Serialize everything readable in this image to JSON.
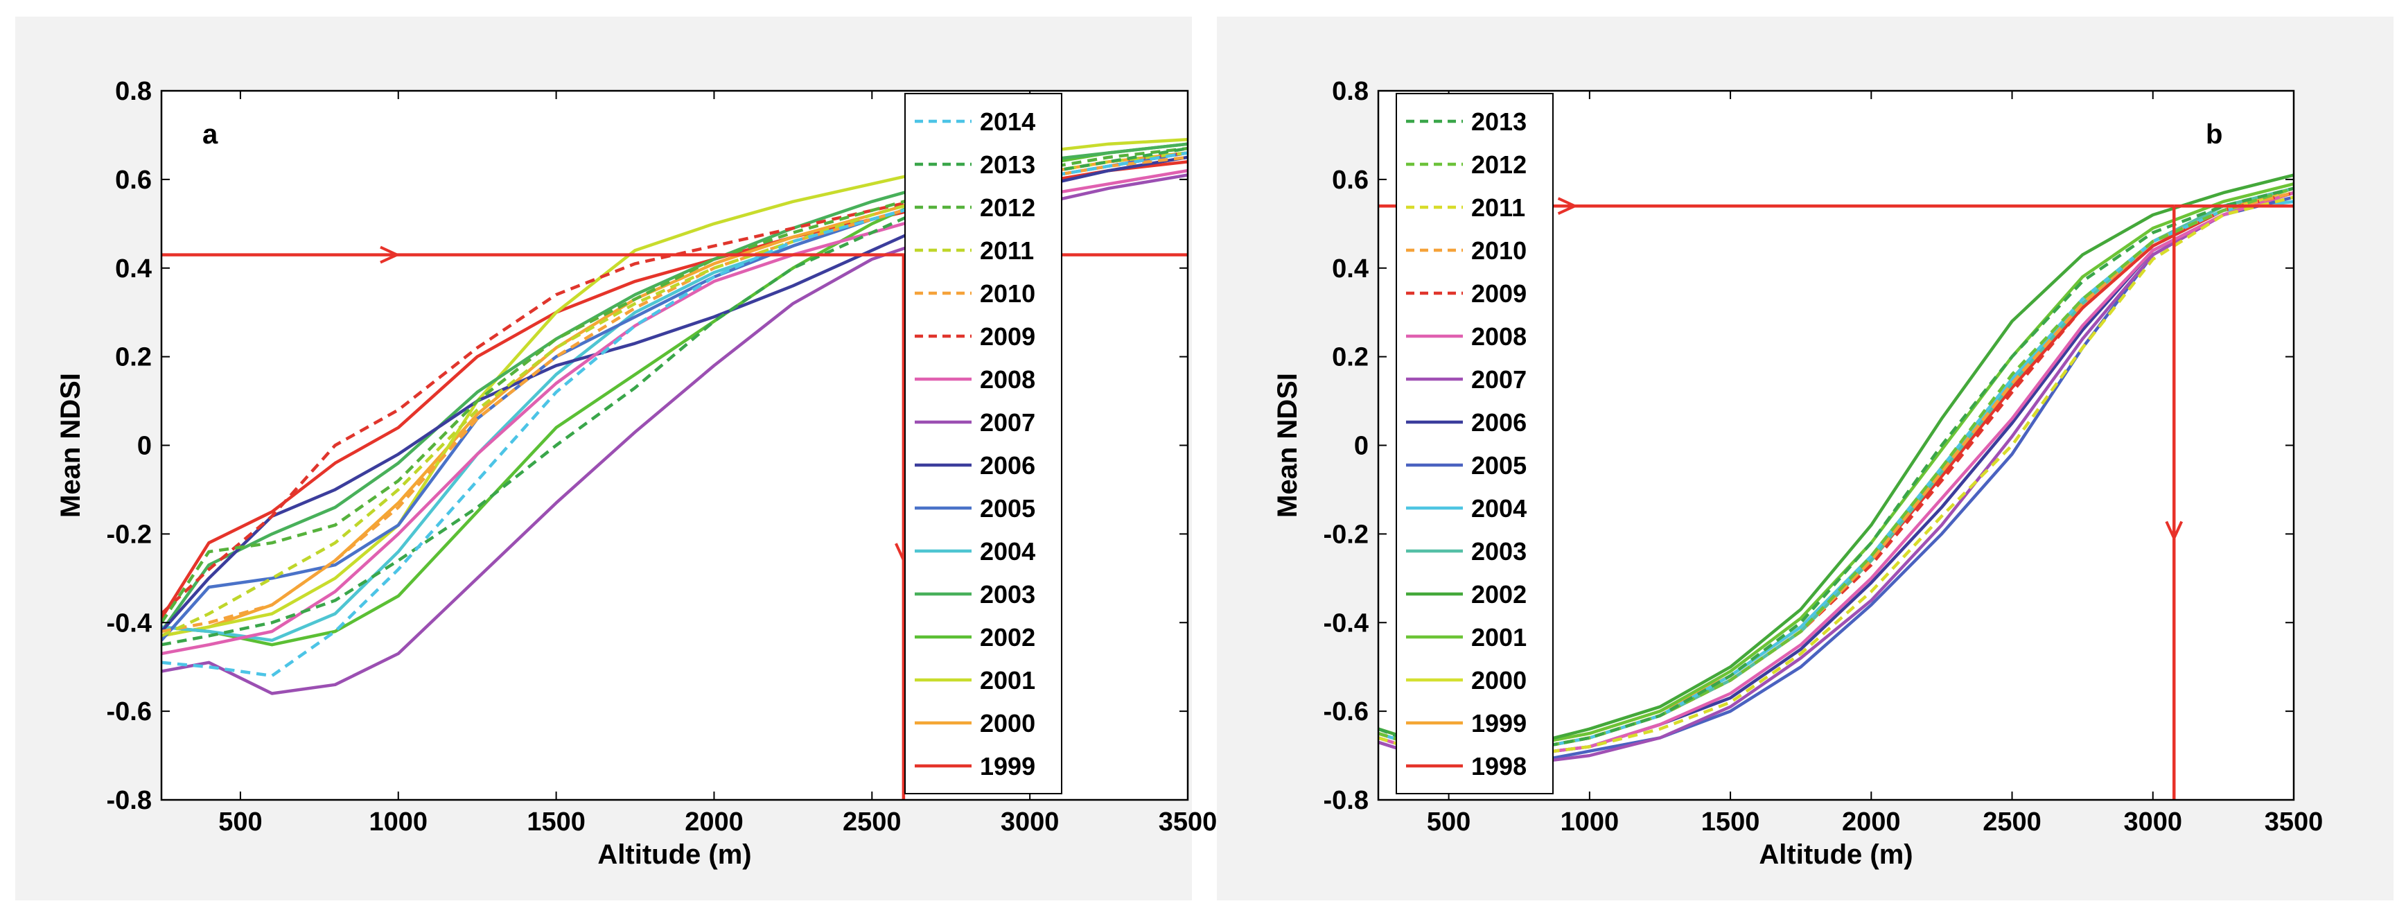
{
  "chart_data": [
    {
      "type": "line",
      "panel_label": "a",
      "xlabel": "Altitude (m)",
      "ylabel": "Mean NDSI",
      "xlim": [
        250,
        3500
      ],
      "ylim": [
        -0.8,
        0.8
      ],
      "xticks": [
        500,
        1000,
        1500,
        2000,
        2500,
        3000,
        3500
      ],
      "yticks": [
        -0.8,
        -0.6,
        -0.4,
        -0.2,
        0,
        0.2,
        0.4,
        0.6,
        0.8
      ],
      "ytick_labels": [
        "-0.8",
        "-0.6",
        "-0.4",
        "-0.2",
        "0",
        "0.2",
        "0.4",
        "0.6",
        "0.8"
      ],
      "legend_position": "top-right",
      "x": [
        250,
        400,
        600,
        800,
        1000,
        1250,
        1500,
        1750,
        2000,
        2250,
        2500,
        2750,
        3000,
        3250,
        3500
      ],
      "series": [
        {
          "name": "2014",
          "color": "#4cc4e6",
          "dash": true,
          "values": [
            -0.49,
            -0.5,
            -0.52,
            -0.42,
            -0.28,
            -0.08,
            0.12,
            0.27,
            0.38,
            0.46,
            0.51,
            0.56,
            0.6,
            0.63,
            0.66
          ]
        },
        {
          "name": "2013",
          "color": "#3aa64a",
          "dash": true,
          "values": [
            -0.45,
            -0.43,
            -0.4,
            -0.35,
            -0.26,
            -0.14,
            0.0,
            0.13,
            0.28,
            0.4,
            0.48,
            0.56,
            0.61,
            0.64,
            0.67
          ]
        },
        {
          "name": "2012",
          "color": "#56b23c",
          "dash": true,
          "values": [
            -0.4,
            -0.24,
            -0.22,
            -0.18,
            -0.08,
            0.1,
            0.24,
            0.33,
            0.42,
            0.48,
            0.53,
            0.58,
            0.62,
            0.65,
            0.67
          ]
        },
        {
          "name": "2011",
          "color": "#bfd62a",
          "dash": true,
          "values": [
            -0.43,
            -0.38,
            -0.3,
            -0.22,
            -0.1,
            0.08,
            0.22,
            0.32,
            0.4,
            0.46,
            0.52,
            0.57,
            0.61,
            0.64,
            0.66
          ]
        },
        {
          "name": "2010",
          "color": "#f5a23a",
          "dash": true,
          "values": [
            -0.42,
            -0.4,
            -0.36,
            -0.26,
            -0.14,
            0.06,
            0.2,
            0.31,
            0.4,
            0.46,
            0.51,
            0.56,
            0.6,
            0.63,
            0.65
          ]
        },
        {
          "name": "2009",
          "color": "#e0352c",
          "dash": true,
          "values": [
            -0.38,
            -0.28,
            -0.16,
            0.0,
            0.08,
            0.22,
            0.34,
            0.41,
            0.45,
            0.49,
            0.53,
            0.57,
            0.61,
            0.64,
            0.66
          ]
        },
        {
          "name": "2008",
          "color": "#e060b0",
          "solid_color": true,
          "dash": false,
          "values": [
            -0.47,
            -0.45,
            -0.42,
            -0.33,
            -0.2,
            -0.02,
            0.14,
            0.27,
            0.37,
            0.43,
            0.48,
            0.53,
            0.56,
            0.59,
            0.62
          ]
        },
        {
          "name": "2007",
          "color": "#9b4fb2",
          "dash": false,
          "values": [
            -0.51,
            -0.49,
            -0.56,
            -0.54,
            -0.47,
            -0.3,
            -0.13,
            0.03,
            0.18,
            0.32,
            0.42,
            0.48,
            0.54,
            0.58,
            0.61
          ]
        },
        {
          "name": "2006",
          "color": "#3b3d9c",
          "dash": false,
          "values": [
            -0.42,
            -0.3,
            -0.16,
            -0.1,
            -0.02,
            0.1,
            0.18,
            0.23,
            0.29,
            0.36,
            0.44,
            0.52,
            0.58,
            0.62,
            0.65
          ]
        },
        {
          "name": "2005",
          "color": "#4a72c8",
          "dash": false,
          "values": [
            -0.44,
            -0.32,
            -0.3,
            -0.27,
            -0.18,
            0.06,
            0.2,
            0.29,
            0.38,
            0.45,
            0.51,
            0.56,
            0.6,
            0.63,
            0.66
          ]
        },
        {
          "name": "2004",
          "color": "#4ec5d2",
          "dash": false,
          "values": [
            -0.41,
            -0.42,
            -0.44,
            -0.38,
            -0.24,
            -0.02,
            0.16,
            0.3,
            0.39,
            0.45,
            0.51,
            0.56,
            0.6,
            0.63,
            0.66
          ]
        },
        {
          "name": "2003",
          "color": "#48b05a",
          "dash": false,
          "values": [
            -0.42,
            -0.27,
            -0.2,
            -0.14,
            -0.04,
            0.12,
            0.24,
            0.34,
            0.42,
            0.49,
            0.55,
            0.6,
            0.64,
            0.66,
            0.68
          ]
        },
        {
          "name": "2002",
          "color": "#5bbf34",
          "dash": false,
          "values": [
            -0.41,
            -0.42,
            -0.45,
            -0.42,
            -0.34,
            -0.15,
            0.04,
            0.16,
            0.28,
            0.4,
            0.5,
            0.58,
            0.63,
            0.66,
            0.68
          ]
        },
        {
          "name": "2001",
          "color": "#c8dc2c",
          "dash": false,
          "values": [
            -0.43,
            -0.41,
            -0.38,
            -0.3,
            -0.18,
            0.1,
            0.3,
            0.44,
            0.5,
            0.55,
            0.59,
            0.63,
            0.66,
            0.68,
            0.69
          ]
        },
        {
          "name": "2000",
          "color": "#f4a634",
          "dash": false,
          "values": [
            -0.43,
            -0.41,
            -0.36,
            -0.26,
            -0.13,
            0.07,
            0.22,
            0.33,
            0.41,
            0.47,
            0.52,
            0.57,
            0.61,
            0.64,
            0.66
          ]
        },
        {
          "name": "1999",
          "color": "#e5342a",
          "dash": false,
          "values": [
            -0.39,
            -0.22,
            -0.15,
            -0.04,
            0.04,
            0.2,
            0.3,
            0.37,
            0.42,
            0.47,
            0.51,
            0.55,
            0.59,
            0.62,
            0.64
          ]
        }
      ],
      "reference": {
        "y": 0.43,
        "x": 2600,
        "color": "#e8322a"
      }
    },
    {
      "type": "line",
      "panel_label": "b",
      "xlabel": "Altitude (m)",
      "ylabel": "Mean NDSI",
      "xlim": [
        250,
        3500
      ],
      "ylim": [
        -0.8,
        0.8
      ],
      "xticks": [
        500,
        1000,
        1500,
        2000,
        2500,
        3000,
        3500
      ],
      "yticks": [
        -0.8,
        -0.6,
        -0.4,
        -0.2,
        0,
        0.2,
        0.4,
        0.6,
        0.8
      ],
      "ytick_labels": [
        "-0.8",
        "-0.6",
        "-0.4",
        "-0.2",
        "0",
        "0.2",
        "0.4",
        "0.6",
        "0.8"
      ],
      "legend_position": "top-left",
      "x": [
        250,
        500,
        750,
        1000,
        1250,
        1500,
        1750,
        2000,
        2250,
        2500,
        2750,
        3000,
        3250,
        3500
      ],
      "series": [
        {
          "name": "2013",
          "color": "#3aa64a",
          "dash": true,
          "values": [
            -0.64,
            -0.7,
            -0.69,
            -0.66,
            -0.61,
            -0.52,
            -0.4,
            -0.22,
            0.0,
            0.2,
            0.37,
            0.48,
            0.54,
            0.58
          ]
        },
        {
          "name": "2012",
          "color": "#6cc23a",
          "dash": true,
          "values": [
            -0.65,
            -0.7,
            -0.69,
            -0.66,
            -0.61,
            -0.53,
            -0.42,
            -0.25,
            -0.05,
            0.16,
            0.33,
            0.46,
            0.53,
            0.58
          ]
        },
        {
          "name": "2011",
          "color": "#d8dc2a",
          "dash": true,
          "values": [
            -0.66,
            -0.71,
            -0.7,
            -0.68,
            -0.64,
            -0.58,
            -0.47,
            -0.33,
            -0.16,
            0.0,
            0.22,
            0.42,
            0.52,
            0.56
          ]
        },
        {
          "name": "2010",
          "color": "#f5a23a",
          "dash": true,
          "values": [
            -0.65,
            -0.7,
            -0.69,
            -0.66,
            -0.61,
            -0.53,
            -0.42,
            -0.26,
            -0.06,
            0.14,
            0.32,
            0.46,
            0.53,
            0.57
          ]
        },
        {
          "name": "2009",
          "color": "#e0352c",
          "dash": true,
          "values": [
            -0.65,
            -0.7,
            -0.69,
            -0.66,
            -0.61,
            -0.53,
            -0.42,
            -0.27,
            -0.08,
            0.12,
            0.31,
            0.45,
            0.53,
            0.57
          ]
        },
        {
          "name": "2008",
          "color": "#e060b0",
          "dash": false,
          "values": [
            -0.66,
            -0.71,
            -0.7,
            -0.68,
            -0.63,
            -0.56,
            -0.45,
            -0.3,
            -0.12,
            0.06,
            0.27,
            0.44,
            0.52,
            0.57
          ]
        },
        {
          "name": "2007",
          "color": "#a050b4",
          "dash": false,
          "values": [
            -0.67,
            -0.72,
            -0.72,
            -0.7,
            -0.66,
            -0.59,
            -0.48,
            -0.35,
            -0.18,
            0.02,
            0.24,
            0.43,
            0.52,
            0.57
          ]
        },
        {
          "name": "2006",
          "color": "#3b3d9c",
          "dash": false,
          "values": [
            -0.66,
            -0.71,
            -0.7,
            -0.68,
            -0.63,
            -0.57,
            -0.46,
            -0.31,
            -0.14,
            0.05,
            0.26,
            0.44,
            0.52,
            0.57
          ]
        },
        {
          "name": "2005",
          "color": "#4a62c0",
          "dash": false,
          "values": [
            -0.67,
            -0.72,
            -0.72,
            -0.69,
            -0.66,
            -0.6,
            -0.5,
            -0.36,
            -0.2,
            -0.02,
            0.22,
            0.43,
            0.52,
            0.56
          ]
        },
        {
          "name": "2004",
          "color": "#4ec5e2",
          "dash": false,
          "values": [
            -0.65,
            -0.7,
            -0.69,
            -0.66,
            -0.61,
            -0.52,
            -0.41,
            -0.25,
            -0.05,
            0.15,
            0.33,
            0.46,
            0.53,
            0.55
          ]
        },
        {
          "name": "2003",
          "color": "#54bfa6",
          "dash": false,
          "values": [
            -0.65,
            -0.7,
            -0.69,
            -0.66,
            -0.61,
            -0.53,
            -0.42,
            -0.26,
            -0.06,
            0.14,
            0.32,
            0.46,
            0.54,
            0.58
          ]
        },
        {
          "name": "2002",
          "color": "#44a83a",
          "dash": false,
          "values": [
            -0.64,
            -0.69,
            -0.68,
            -0.64,
            -0.59,
            -0.5,
            -0.37,
            -0.18,
            0.06,
            0.28,
            0.43,
            0.52,
            0.57,
            0.61
          ]
        },
        {
          "name": "2001",
          "color": "#6cc436",
          "dash": false,
          "values": [
            -0.64,
            -0.69,
            -0.68,
            -0.65,
            -0.6,
            -0.51,
            -0.39,
            -0.22,
            -0.01,
            0.2,
            0.38,
            0.49,
            0.55,
            0.59
          ]
        },
        {
          "name": "2000",
          "color": "#d4e030",
          "dash": false,
          "values": [
            -0.65,
            -0.7,
            -0.69,
            -0.66,
            -0.61,
            -0.53,
            -0.42,
            -0.26,
            -0.06,
            0.14,
            0.32,
            0.46,
            0.53,
            0.57
          ]
        },
        {
          "name": "1999",
          "color": "#f4a634",
          "dash": false,
          "values": [
            -0.64,
            -0.69,
            -0.68,
            -0.65,
            -0.6,
            -0.52,
            -0.41,
            -0.25,
            -0.05,
            0.15,
            0.33,
            0.46,
            0.53,
            0.58
          ]
        },
        {
          "name": "1998",
          "color": "#e5342a",
          "dash": false,
          "values": [
            -0.65,
            -0.7,
            -0.69,
            -0.66,
            -0.61,
            -0.53,
            -0.42,
            -0.26,
            -0.07,
            0.13,
            0.31,
            0.45,
            0.53,
            0.58
          ]
        }
      ],
      "reference": {
        "y": 0.54,
        "x": 3075,
        "color": "#e8322a"
      }
    }
  ]
}
